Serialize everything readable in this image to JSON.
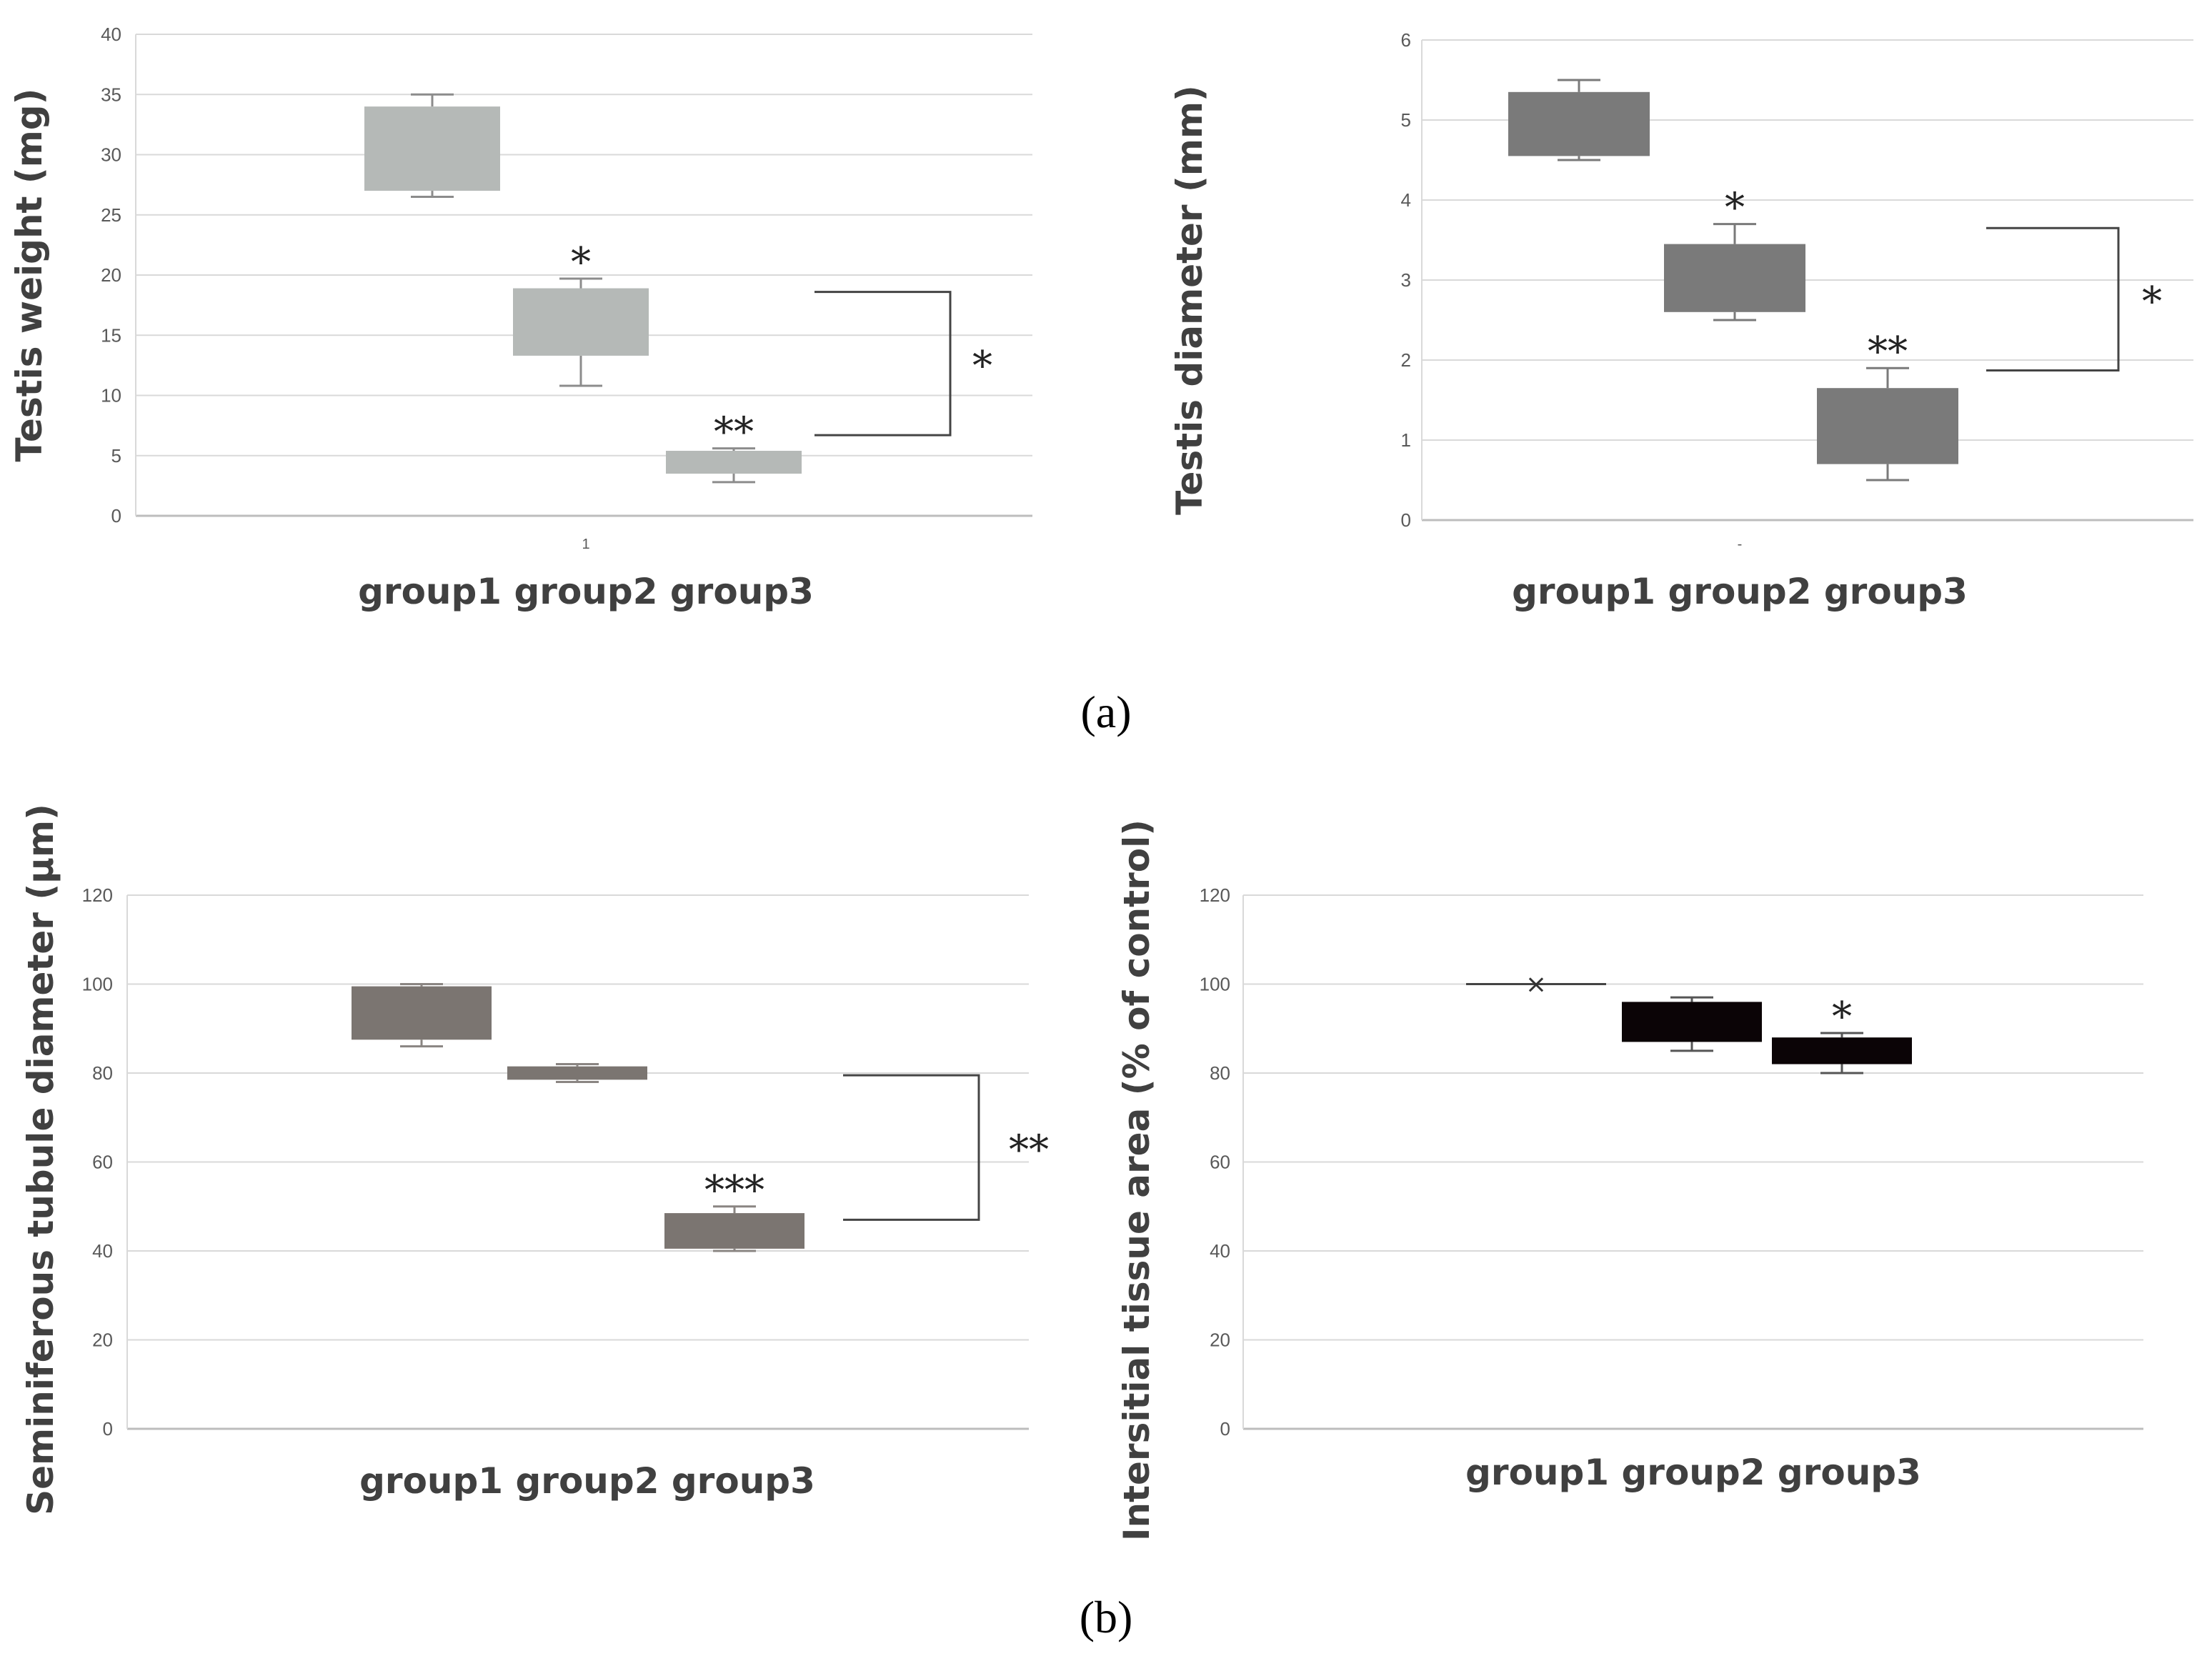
{
  "panel_labels": {
    "a": "(a)",
    "b": "(b)"
  },
  "chart_data": [
    {
      "type": "box",
      "ylabel": "Testis weight (mg)",
      "xlabel": "group1 group2  group3",
      "categories": [
        "group1",
        "group2",
        "group3"
      ],
      "yticks": [
        "0",
        "5",
        "10",
        "15",
        "20",
        "25",
        "30",
        "35",
        "40"
      ],
      "ylim": [
        0,
        40
      ],
      "box_color": "#b5b9b7",
      "whisker_color": "#8c8c8c",
      "boxes": [
        {
          "name": "group1",
          "min": 26.5,
          "q1": 27,
          "q3": 34,
          "max": 35,
          "sig": ""
        },
        {
          "name": "group2",
          "min": 10.8,
          "q1": 13.3,
          "q3": 18.9,
          "max": 19.7,
          "sig": "*"
        },
        {
          "name": "group3",
          "min": 2.8,
          "q1": 3.5,
          "q3": 5.4,
          "max": 5.6,
          "sig": "**"
        }
      ],
      "bracket": {
        "from": 18.6,
        "to": 6.7,
        "label": "*"
      },
      "axis_marker": "1"
    },
    {
      "type": "box",
      "ylabel": "Testis diameter (mm)",
      "xlabel": "group1 group2  group3",
      "categories": [
        "group1",
        "group2",
        "group3"
      ],
      "yticks": [
        "0",
        "1",
        "2",
        "3",
        "4",
        "5",
        "6"
      ],
      "ylim": [
        0,
        6
      ],
      "box_color": "#7a7a7a",
      "whisker_color": "#7a7a7a",
      "boxes": [
        {
          "name": "group1",
          "min": 4.5,
          "q1": 4.55,
          "q3": 5.35,
          "max": 5.5,
          "sig": ""
        },
        {
          "name": "group2",
          "min": 2.5,
          "q1": 2.6,
          "q3": 3.45,
          "max": 3.7,
          "sig": "*"
        },
        {
          "name": "group3",
          "min": 0.5,
          "q1": 0.7,
          "q3": 1.65,
          "max": 1.9,
          "sig": "**"
        }
      ],
      "bracket": {
        "from": 3.65,
        "to": 1.87,
        "label": "*"
      },
      "axis_marker": "-"
    },
    {
      "type": "box",
      "ylabel": "Seminiferous tubule diameter  (µm)",
      "xlabel": "group1 group2  group3",
      "categories": [
        "group1",
        "group2",
        "group3"
      ],
      "yticks": [
        "0",
        "20",
        "40",
        "60",
        "80",
        "100",
        "120"
      ],
      "ylim": [
        0,
        120
      ],
      "box_color": "#7b7571",
      "whisker_color": "#8a8582",
      "boxes": [
        {
          "name": "group1",
          "min": 86,
          "q1": 87.5,
          "q3": 99.5,
          "max": 100,
          "sig": ""
        },
        {
          "name": "group2",
          "min": 78,
          "q1": 78.5,
          "q3": 81.5,
          "max": 82,
          "sig": ""
        },
        {
          "name": "group3",
          "min": 40,
          "q1": 40.5,
          "q3": 48.5,
          "max": 50,
          "sig": "***"
        }
      ],
      "bracket": {
        "from": 79.5,
        "to": 47,
        "label": "**"
      },
      "axis_marker": ""
    },
    {
      "type": "box",
      "ylabel": "Intersitial tissue  area (% of control)",
      "xlabel": "group1 group2  group3",
      "categories": [
        "group1",
        "group2",
        "group3"
      ],
      "yticks": [
        "0",
        "20",
        "40",
        "60",
        "80",
        "100",
        "120"
      ],
      "ylim": [
        0,
        120
      ],
      "box_color": "#0b0406",
      "whisker_color": "#555555",
      "boxes": [
        {
          "name": "group1",
          "min": 100,
          "q1": 100,
          "q3": 100,
          "max": 100,
          "sig": "",
          "mean_marker": "×"
        },
        {
          "name": "group2",
          "min": 85,
          "q1": 87,
          "q3": 96,
          "max": 97,
          "sig": ""
        },
        {
          "name": "group3",
          "min": 80,
          "q1": 82,
          "q3": 88,
          "max": 89,
          "sig": "*"
        }
      ],
      "bracket": null,
      "axis_marker": ""
    }
  ]
}
